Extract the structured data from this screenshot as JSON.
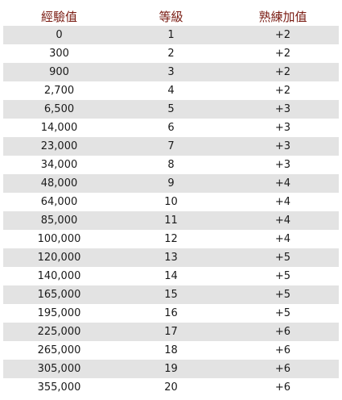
{
  "table": {
    "headers": [
      "經驗值",
      "等級",
      "熟練加值"
    ],
    "rows": [
      [
        "0",
        "1",
        "+2"
      ],
      [
        "300",
        "2",
        "+2"
      ],
      [
        "900",
        "3",
        "+2"
      ],
      [
        "2,700",
        "4",
        "+2"
      ],
      [
        "6,500",
        "5",
        "+3"
      ],
      [
        "14,000",
        "6",
        "+3"
      ],
      [
        "23,000",
        "7",
        "+3"
      ],
      [
        "34,000",
        "8",
        "+3"
      ],
      [
        "48,000",
        "9",
        "+4"
      ],
      [
        "64,000",
        "10",
        "+4"
      ],
      [
        "85,000",
        "11",
        "+4"
      ],
      [
        "100,000",
        "12",
        "+4"
      ],
      [
        "120,000",
        "13",
        "+5"
      ],
      [
        "140,000",
        "14",
        "+5"
      ],
      [
        "165,000",
        "15",
        "+5"
      ],
      [
        "195,000",
        "16",
        "+5"
      ],
      [
        "225,000",
        "17",
        "+6"
      ],
      [
        "265,000",
        "18",
        "+6"
      ],
      [
        "305,000",
        "19",
        "+6"
      ],
      [
        "355,000",
        "20",
        "+6"
      ]
    ]
  },
  "colors": {
    "header_text": "#7a1c13",
    "row_shade": "#e3e3e3",
    "cell_text": "#1a1a1a"
  }
}
